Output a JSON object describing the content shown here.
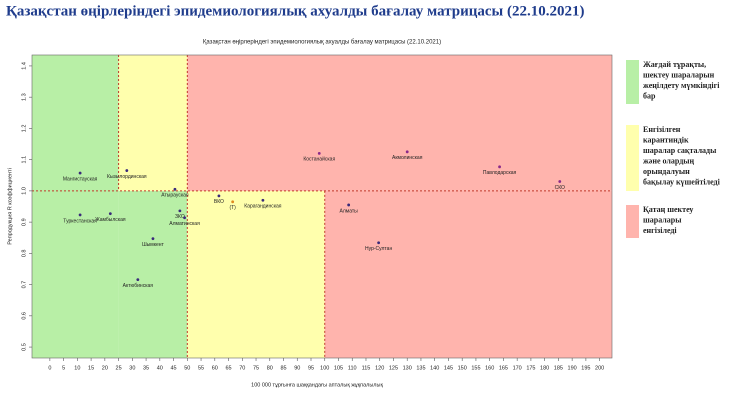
{
  "header": {
    "title": "Қазақстан өңірлеріндегі эпидемиологиялық ахуалды бағалау матрицасы  (22.10.2021)"
  },
  "chart_data": {
    "type": "scatter",
    "title": "Қазақстан өңірлеріндегі эпидемиологиялық ахуалды бағалау матрицасы (22.10.2021)",
    "x_label": "100 000 тұрғынға шаққандағы апталық жұқпалылық",
    "y_label": "Репродукция R коэффициенті",
    "x": [
      11,
      28,
      45.5,
      130,
      98,
      163.6,
      185.5,
      108.7,
      119.6,
      11,
      22,
      47.3,
      49,
      37.5,
      32,
      61.5,
      66.5,
      77.5
    ],
    "values": [
      1.057,
      1.065,
      1.005,
      1.125,
      1.12,
      1.077,
      1.03,
      0.955,
      0.834,
      0.923,
      0.927,
      0.936,
      0.914,
      0.847,
      0.716,
      0.984,
      0.965,
      0.97
    ],
    "point_labels": [
      "Мангистауская",
      "Кызылординская",
      "Атырауская",
      "Акмолинская",
      "Костанайская",
      "Павлодарская",
      "СКО",
      "Алматы",
      "Нур-Султан",
      "Туркестанская",
      "Жамбылская",
      "ЗКО",
      "Алматинская",
      "Шымкент",
      "Актюбинская",
      "ВКО",
      "(Т)",
      "Карагандинская"
    ],
    "colors": [
      "#3a2a7a",
      "#3a2a7a",
      "#3a2a7a",
      "#8a2a8a",
      "#8a2a8a",
      "#8a2a8a",
      "#8a2a8a",
      "#3a2a7a",
      "#3a2a7a",
      "#3a2a7a",
      "#3a2a7a",
      "#3a2a7a",
      "#3a2a7a",
      "#3a2a7a",
      "#3a2a7a",
      "#3a2a7a",
      "#e08a20",
      "#3a2a7a"
    ],
    "xlim": [
      -6.5,
      204.5
    ],
    "ylim": [
      0.465,
      1.435
    ],
    "xticks": [
      0,
      5,
      10,
      15,
      20,
      25,
      30,
      35,
      40,
      45,
      50,
      55,
      60,
      65,
      70,
      75,
      80,
      85,
      90,
      95,
      100,
      105,
      110,
      115,
      120,
      125,
      130,
      135,
      140,
      145,
      150,
      155,
      160,
      165,
      170,
      175,
      180,
      185,
      190,
      195,
      200
    ],
    "yticks": [
      0.5,
      0.6,
      0.7,
      0.8,
      0.9,
      {
        "value": 1,
        "label": "1.0"
      },
      1.1,
      1.2,
      1.3,
      1.4
    ],
    "thresholds": {
      "x": [
        25,
        50,
        100
      ],
      "y": 1
    },
    "region_colors": [
      "#b8efa6",
      "#ffffad",
      "#ffb4ad"
    ],
    "legend_items": [
      {
        "color": "#b8efa6",
        "lines": [
          "Жағдай тұрақты,",
          "шектеу шараларын",
          "жеңілдету мүмкіндігі",
          "бар"
        ]
      },
      {
        "color": "#ffffad",
        "lines": [
          "Енгізілген",
          "карантиндік",
          "шаралар сақталады",
          "және олардың",
          "орындалуын",
          "бақылау күшейтіледі"
        ]
      },
      {
        "color": "#ffb4ad",
        "lines": [
          "Қатаң шектеу",
          "шаралары",
          "енгізіледі"
        ]
      }
    ]
  }
}
